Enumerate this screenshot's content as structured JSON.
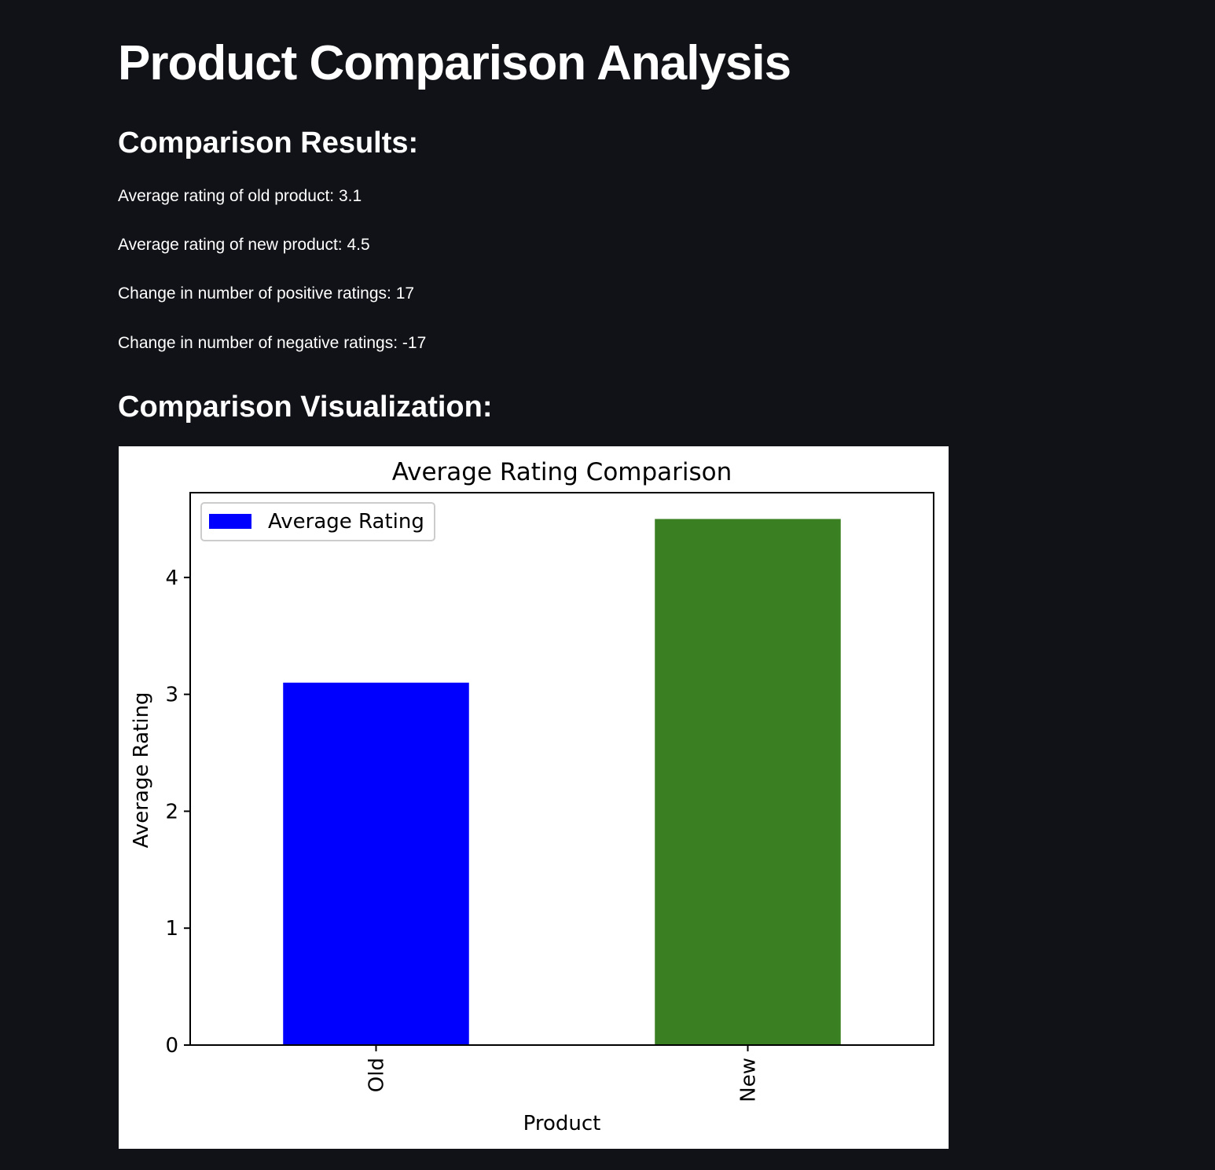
{
  "page": {
    "title": "Product Comparison Analysis"
  },
  "results": {
    "heading": "Comparison Results:",
    "lines": [
      "Average rating of old product: 3.1",
      "Average rating of new product: 4.5",
      "Change in number of positive ratings: 17",
      "Change in number of negative ratings: -17"
    ]
  },
  "visualization": {
    "heading": "Comparison Visualization:"
  },
  "chart_data": {
    "type": "bar",
    "title": "Average Rating Comparison",
    "xlabel": "Product",
    "ylabel": "Average Rating",
    "categories": [
      "Old",
      "New"
    ],
    "values": [
      3.1,
      4.5
    ],
    "bar_colors": [
      "#0000ff",
      "#3a7f21"
    ],
    "ylim": [
      0,
      4.725
    ],
    "yticks": [
      0,
      1,
      2,
      3,
      4
    ],
    "grid": false,
    "legend": {
      "placement": "top-left",
      "label": "Average Rating",
      "color": "#0000ff"
    }
  },
  "colors": {
    "background": "#111217",
    "text": "#ffffff",
    "chart_background": "#ffffff"
  }
}
